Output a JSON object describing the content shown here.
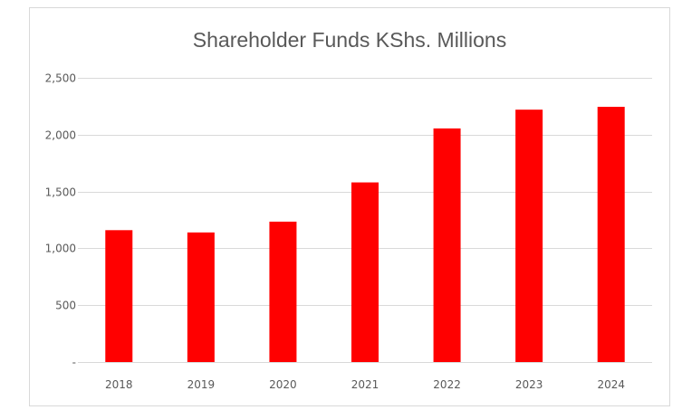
{
  "chart_data": {
    "type": "bar",
    "title": "Shareholder Funds KShs. Millions",
    "xlabel": "",
    "ylabel": "",
    "categories": [
      "2018",
      "2019",
      "2020",
      "2021",
      "2022",
      "2023",
      "2024"
    ],
    "values": [
      1160,
      1140,
      1235,
      1580,
      2055,
      2220,
      2245
    ],
    "ylim": [
      0,
      2500
    ],
    "yticks": [
      0,
      500,
      1000,
      1500,
      2000,
      2500
    ],
    "ytick_labels": [
      "-",
      "500",
      "1,000",
      "1,500",
      "2,000",
      "2,500"
    ],
    "grid": true,
    "legend": "none",
    "bar_color": "#ff0000",
    "grid_color": "#d9d9d9",
    "text_color": "#595959"
  }
}
